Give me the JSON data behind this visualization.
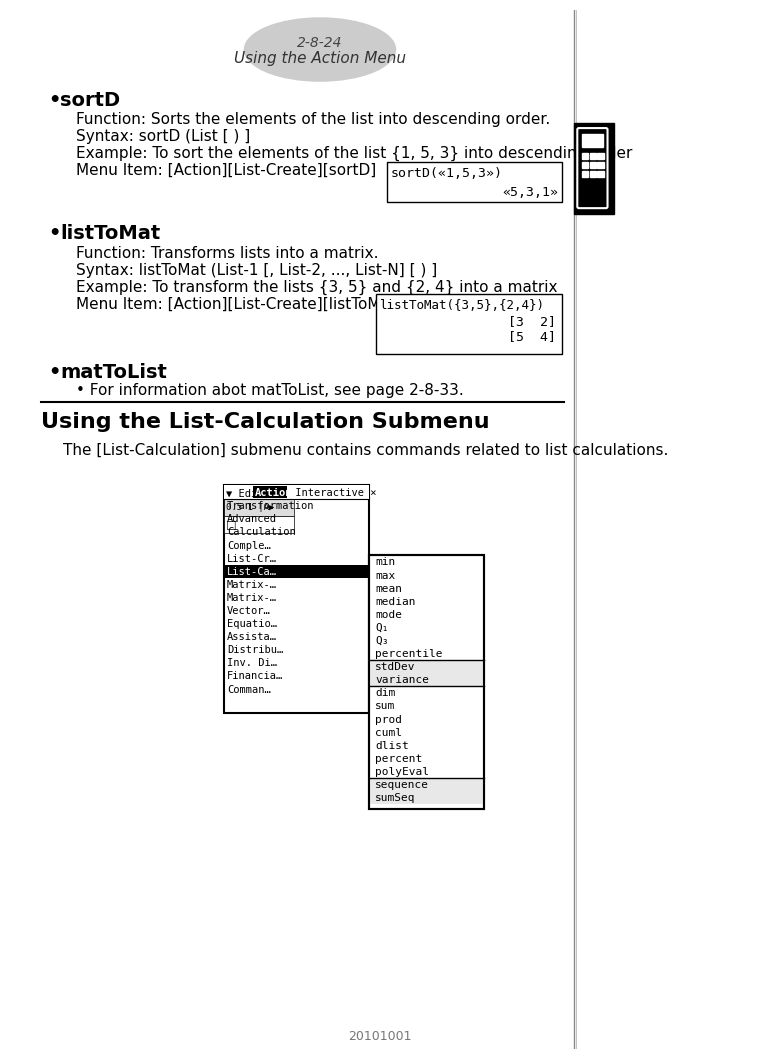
{
  "page_header_num": "2-8-24",
  "page_header_sub": "Using the Action Menu",
  "bg_color": "#ffffff",
  "section1_bullet": "• sortD",
  "section1_lines": [
    "Function: Sorts the elements of the list into descending order.",
    "Syntax: sortD (List [ ) ]",
    "Example: To sort the elements of the list {1, 5, 3} into descending order",
    "Menu Item: [Action][List-Create][sortD]"
  ],
  "sortD_box_line1": "sortD(«1,5,3»)",
  "sortD_box_line2": "«5,3,1»",
  "section2_bullet": "• listToMat",
  "section2_lines": [
    "Function: Transforms lists into a matrix.",
    "Syntax: listToMat (List-1 [, List-2, ..., List-N] [ ) ]",
    "Example: To transform the lists {3, 5} and {2, 4} into a matrix",
    "Menu Item: [Action][List-Create][listToMat]"
  ],
  "listToMat_box_line1": "listToMat({3,5},{2,4})",
  "listToMat_box_line2": "[3  2]",
  "listToMat_box_line3": "[5  4]",
  "section3_bullet": "• matToList",
  "section3_sub": "• For information abot matToList, see page 2-8-33.",
  "section4_title": "Using the List-Calculation Submenu",
  "section4_desc": "The [List-Calculation] submenu contains commands related to list calculations.",
  "menu_left_items": [
    "Transformation",
    "Advanced",
    "Calculation",
    "Comple…",
    "List-Cr…",
    "List-Ca…",
    "Matrix-…",
    "Matrix-…",
    "Vector…",
    "Equatio…",
    "Assista…",
    "Distribu…",
    "Inv. Di…",
    "Financia…",
    "Comman…"
  ],
  "menu_right_items_group1": [
    "min",
    "max",
    "mean",
    "median",
    "mode",
    "Q₁",
    "Q₃",
    "percentile"
  ],
  "menu_right_items_group2": [
    "stdDev",
    "variance"
  ],
  "menu_right_items_group3": [
    "dim",
    "sum",
    "prod",
    "cuml",
    "dlist",
    "percent",
    "polyEval"
  ],
  "menu_right_items_group4": [
    "sequence",
    "sumSeq"
  ],
  "footer_text": "20101001"
}
